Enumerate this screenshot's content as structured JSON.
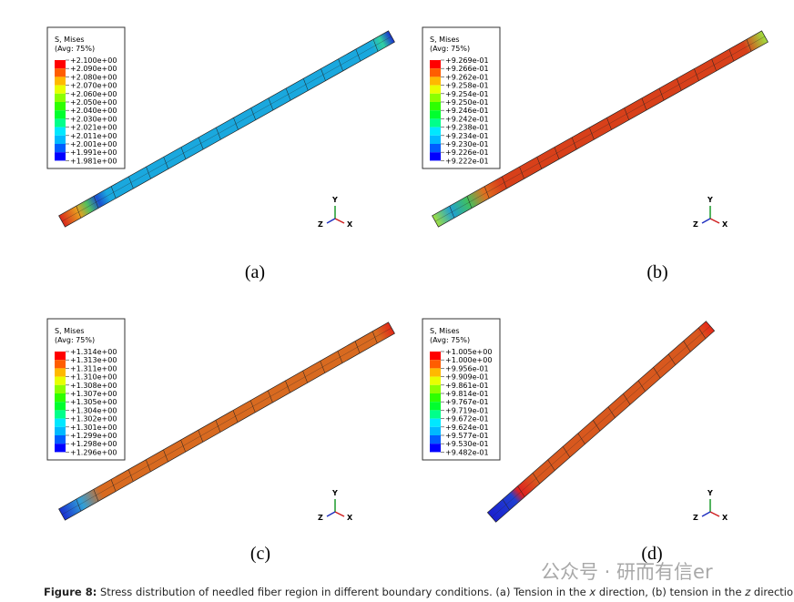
{
  "panels": [
    {
      "label": "(a)",
      "legend": {
        "title": "S, Mises",
        "subtitle": "(Avg: 75%)",
        "values": [
          "+2.100e+00",
          "+2.090e+00",
          "+2.080e+00",
          "+2.070e+00",
          "+2.060e+00",
          "+2.050e+00",
          "+2.040e+00",
          "+2.030e+00",
          "+2.021e+00",
          "+2.011e+00",
          "+2.001e+00",
          "+1.991e+00",
          "+1.981e+00"
        ]
      },
      "triad": {
        "y": "Y",
        "z": "Z",
        "x": "X"
      }
    },
    {
      "label": "(b)",
      "legend": {
        "title": "S, Mises",
        "subtitle": "(Avg: 75%)",
        "values": [
          "+9.269e-01",
          "+9.266e-01",
          "+9.262e-01",
          "+9.258e-01",
          "+9.254e-01",
          "+9.250e-01",
          "+9.246e-01",
          "+9.242e-01",
          "+9.238e-01",
          "+9.234e-01",
          "+9.230e-01",
          "+9.226e-01",
          "+9.222e-01"
        ]
      },
      "triad": {
        "y": "Y",
        "z": "Z",
        "x": "X"
      }
    },
    {
      "label": "(c)",
      "legend": {
        "title": "S, Mises",
        "subtitle": "(Avg: 75%)",
        "values": [
          "+1.314e+00",
          "+1.313e+00",
          "+1.311e+00",
          "+1.310e+00",
          "+1.308e+00",
          "+1.307e+00",
          "+1.305e+00",
          "+1.304e+00",
          "+1.302e+00",
          "+1.301e+00",
          "+1.299e+00",
          "+1.298e+00",
          "+1.296e+00"
        ]
      },
      "triad": {
        "y": "Y",
        "z": "Z",
        "x": "X"
      }
    },
    {
      "label": "(d)",
      "legend": {
        "title": "S, Mises",
        "subtitle": "(Avg: 75%)",
        "values": [
          "+1.005e+00",
          "+1.000e+00",
          "+9.956e-01",
          "+9.909e-01",
          "+9.861e-01",
          "+9.814e-01",
          "+9.767e-01",
          "+9.719e-01",
          "+9.672e-01",
          "+9.624e-01",
          "+9.577e-01",
          "+9.530e-01",
          "+9.482e-01"
        ]
      },
      "triad": {
        "y": "Y",
        "z": "Z",
        "x": "X"
      }
    }
  ],
  "caption": {
    "label": "Figure 8:",
    "parts": [
      " Stress distribution of needled fiber region in different boundary conditions. (a) Tension in the ",
      "x",
      " direction, (b) tension in the ",
      "z",
      " direction, (c)"
    ]
  },
  "watermark": "公众号 · 研而有信er"
}
